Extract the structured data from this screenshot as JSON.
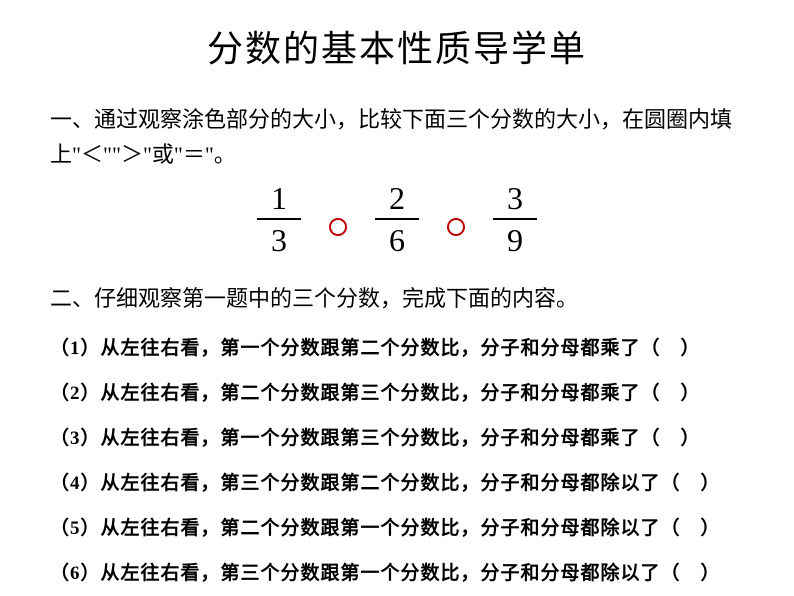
{
  "title": "分数的基本性质导学单",
  "sectionOne": {
    "text": "一、通过观察涂色部分的大小，比较下面三个分数的大小，在圆圈内填上\"＜\"\"＞\"或\"＝\"。"
  },
  "fractions": {
    "f1": {
      "numerator": "1",
      "denominator": "3"
    },
    "f2": {
      "numerator": "2",
      "denominator": "6"
    },
    "f3": {
      "numerator": "3",
      "denominator": "9"
    }
  },
  "sectionTwo": {
    "text": "二、仔细观察第一题中的三个分数，完成下面的内容。"
  },
  "questions": {
    "q1": {
      "num": "（1）",
      "text": "从左往右看，第一个分数跟第二个分数比，分子和分母都乘了（　）"
    },
    "q2": {
      "num": "（2）",
      "text": "从左往右看，第二个分数跟第三个分数比，分子和分母都乘了（　）"
    },
    "q3": {
      "num": "（3）",
      "text": "从左往右看，第一个分数跟第三个分数比，分子和分母都乘了（　）"
    },
    "q4": {
      "num": "（4）",
      "text": "从左往右看，第三个分数跟第二个分数比，分子和分母都除以了（　）"
    },
    "q5": {
      "num": "（5）",
      "text": "从左往右看，第二个分数跟第一个分数比，分子和分母都除以了（　）"
    },
    "q6": {
      "num": "（6）",
      "text": "从左往右看，第三个分数跟第一个分数比，分子和分母都除以了（　）"
    }
  },
  "colors": {
    "text": "#000000",
    "background": "#ffffff",
    "circleBorder": "#c00000"
  }
}
